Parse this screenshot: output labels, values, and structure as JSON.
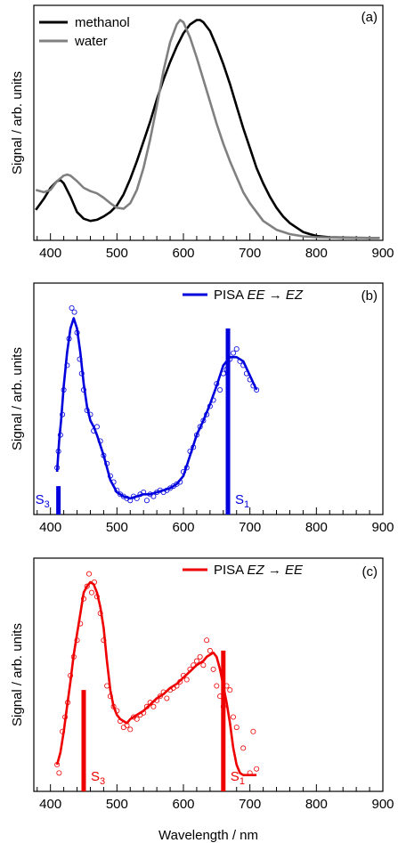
{
  "chart_data": [
    {
      "type": "line",
      "panel_label": "(a)",
      "ylabel": "Signal / arb. units",
      "xlim": [
        375,
        900
      ],
      "ylim": [
        0,
        1.0
      ],
      "xticks": [
        "400",
        "500",
        "600",
        "700",
        "800",
        "900"
      ],
      "legend_position": "top-left",
      "series": [
        {
          "name": "methanol",
          "color": "#000000",
          "x": [
            378,
            390,
            400,
            410,
            415,
            420,
            430,
            440,
            450,
            460,
            470,
            480,
            490,
            500,
            510,
            520,
            530,
            540,
            550,
            560,
            570,
            580,
            590,
            600,
            610,
            620,
            625,
            630,
            640,
            650,
            660,
            670,
            680,
            690,
            700,
            710,
            720,
            730,
            740,
            750,
            760,
            770,
            780,
            790,
            800,
            820,
            850,
            880,
            895
          ],
          "y": [
            0.13,
            0.18,
            0.23,
            0.26,
            0.265,
            0.25,
            0.19,
            0.12,
            0.09,
            0.08,
            0.085,
            0.1,
            0.12,
            0.15,
            0.2,
            0.27,
            0.35,
            0.44,
            0.53,
            0.63,
            0.72,
            0.8,
            0.87,
            0.93,
            0.97,
            0.99,
            0.99,
            0.98,
            0.94,
            0.87,
            0.79,
            0.7,
            0.6,
            0.5,
            0.41,
            0.32,
            0.25,
            0.19,
            0.14,
            0.1,
            0.07,
            0.05,
            0.03,
            0.02,
            0.012,
            0.006,
            0.004,
            0.003,
            0.003
          ]
        },
        {
          "name": "water",
          "color": "#808080",
          "x": [
            378,
            390,
            400,
            410,
            420,
            425,
            430,
            440,
            450,
            460,
            470,
            480,
            490,
            500,
            510,
            520,
            530,
            540,
            550,
            560,
            570,
            580,
            590,
            595,
            600,
            610,
            620,
            630,
            640,
            650,
            660,
            670,
            680,
            690,
            700,
            720,
            740,
            760,
            780,
            800,
            830,
            860,
            895
          ],
          "y": [
            0.22,
            0.21,
            0.22,
            0.26,
            0.285,
            0.29,
            0.285,
            0.26,
            0.23,
            0.215,
            0.205,
            0.185,
            0.16,
            0.14,
            0.135,
            0.16,
            0.22,
            0.32,
            0.45,
            0.6,
            0.76,
            0.89,
            0.97,
            0.99,
            0.98,
            0.91,
            0.82,
            0.72,
            0.62,
            0.52,
            0.43,
            0.35,
            0.28,
            0.21,
            0.16,
            0.08,
            0.04,
            0.02,
            0.01,
            0.006,
            0.004,
            0.003,
            0.003
          ]
        }
      ]
    },
    {
      "type": "line",
      "panel_label": "(b)",
      "ylabel": "Signal / arb. units",
      "xlim": [
        375,
        900
      ],
      "ylim": [
        0,
        1.0
      ],
      "xticks": [
        "400",
        "500",
        "600",
        "700",
        "800",
        "900"
      ],
      "legend_position": "top-right",
      "color": "#0000dd",
      "series": [
        {
          "name": "PISA",
          "name_italic_1": "EE",
          "name_arrow": "→",
          "name_italic_2": "EZ",
          "x": [
            410,
            413,
            416,
            420,
            425,
            430,
            435,
            440,
            445,
            450,
            455,
            460,
            465,
            470,
            480,
            490,
            500,
            510,
            520,
            530,
            540,
            550,
            560,
            570,
            580,
            590,
            600,
            610,
            620,
            630,
            640,
            650,
            660,
            670,
            680,
            690,
            700,
            710
          ],
          "y": [
            0.2,
            0.35,
            0.45,
            0.62,
            0.78,
            0.9,
            0.95,
            0.9,
            0.78,
            0.63,
            0.52,
            0.45,
            0.42,
            0.38,
            0.28,
            0.16,
            0.1,
            0.08,
            0.07,
            0.08,
            0.09,
            0.09,
            0.1,
            0.11,
            0.12,
            0.14,
            0.18,
            0.28,
            0.38,
            0.45,
            0.53,
            0.62,
            0.72,
            0.76,
            0.76,
            0.74,
            0.67,
            0.6
          ]
        }
      ],
      "scatter": {
        "x": [
          410,
          412,
          415,
          418,
          420,
          425,
          428,
          432,
          436,
          440,
          444,
          447,
          450,
          455,
          460,
          465,
          470,
          475,
          480,
          485,
          490,
          495,
          500,
          505,
          510,
          515,
          520,
          525,
          530,
          535,
          540,
          545,
          550,
          555,
          560,
          565,
          570,
          575,
          580,
          585,
          590,
          595,
          600,
          605,
          610,
          615,
          620,
          625,
          630,
          635,
          640,
          645,
          650,
          655,
          660,
          665,
          670,
          675,
          680,
          685,
          690,
          695,
          700,
          705,
          710
        ],
        "y": [
          0.22,
          0.3,
          0.38,
          0.48,
          0.6,
          0.72,
          0.85,
          1.0,
          0.98,
          0.88,
          0.75,
          0.68,
          0.6,
          0.5,
          0.48,
          0.4,
          0.42,
          0.35,
          0.28,
          0.24,
          0.18,
          0.15,
          0.11,
          0.09,
          0.08,
          0.07,
          0.06,
          0.08,
          0.07,
          0.09,
          0.1,
          0.06,
          0.09,
          0.08,
          0.1,
          0.11,
          0.1,
          0.11,
          0.12,
          0.13,
          0.14,
          0.15,
          0.2,
          0.22,
          0.3,
          0.32,
          0.38,
          0.42,
          0.45,
          0.48,
          0.52,
          0.55,
          0.63,
          0.6,
          0.68,
          0.7,
          0.75,
          0.78,
          0.8,
          0.74,
          0.72,
          0.68,
          0.65,
          0.62,
          0.6
        ]
      },
      "sticks": [
        {
          "label": "S3",
          "sub": "3",
          "x": 412,
          "height": 0.13
        },
        {
          "label": "S1",
          "sub": "1",
          "x": 667,
          "height": 0.9
        }
      ]
    },
    {
      "type": "line",
      "panel_label": "(c)",
      "ylabel": "Signal / arb. units",
      "xlabel": "Wavelength / nm",
      "xlim": [
        375,
        900
      ],
      "ylim": [
        0,
        1.0
      ],
      "xticks": [
        "400",
        "500",
        "600",
        "700",
        "800",
        "900"
      ],
      "legend_position": "top-right",
      "color": "#ee0000",
      "series": [
        {
          "name": "PISA",
          "name_italic_1": "EZ",
          "name_arrow": "→",
          "name_italic_2": "EE",
          "x": [
            410,
            415,
            420,
            425,
            430,
            435,
            440,
            445,
            450,
            455,
            460,
            465,
            470,
            475,
            480,
            485,
            490,
            495,
            500,
            505,
            510,
            515,
            520,
            530,
            540,
            550,
            560,
            570,
            580,
            590,
            600,
            610,
            620,
            630,
            635,
            640,
            645,
            650,
            655,
            660,
            665,
            670,
            675,
            680,
            685,
            690,
            700,
            705,
            710
          ],
          "y": [
            0.12,
            0.18,
            0.28,
            0.4,
            0.52,
            0.65,
            0.75,
            0.85,
            0.95,
            0.98,
            1.0,
            0.99,
            0.95,
            0.88,
            0.78,
            0.62,
            0.48,
            0.4,
            0.36,
            0.34,
            0.33,
            0.32,
            0.34,
            0.36,
            0.38,
            0.41,
            0.44,
            0.46,
            0.49,
            0.51,
            0.54,
            0.57,
            0.6,
            0.62,
            0.64,
            0.65,
            0.66,
            0.64,
            0.58,
            0.5,
            0.42,
            0.32,
            0.2,
            0.12,
            0.08,
            0.07,
            0.07,
            0.07,
            0.07
          ]
        }
      ],
      "scatter": {
        "x": [
          410,
          413,
          418,
          422,
          426,
          430,
          435,
          440,
          445,
          450,
          455,
          458,
          462,
          466,
          470,
          475,
          480,
          485,
          490,
          495,
          500,
          505,
          510,
          515,
          520,
          525,
          530,
          535,
          540,
          545,
          550,
          555,
          560,
          565,
          570,
          575,
          580,
          585,
          590,
          595,
          600,
          605,
          610,
          615,
          620,
          625,
          630,
          635,
          640,
          645,
          650,
          655,
          660,
          665,
          670,
          675,
          680,
          690,
          700,
          705,
          710
        ],
        "y": [
          0.12,
          0.08,
          0.28,
          0.35,
          0.42,
          0.55,
          0.64,
          0.72,
          0.8,
          0.92,
          0.98,
          1.04,
          0.95,
          1.0,
          0.93,
          0.85,
          0.72,
          0.5,
          0.45,
          0.4,
          0.38,
          0.33,
          0.3,
          0.31,
          0.29,
          0.35,
          0.34,
          0.36,
          0.37,
          0.4,
          0.42,
          0.4,
          0.43,
          0.45,
          0.47,
          0.44,
          0.48,
          0.49,
          0.5,
          0.52,
          0.55,
          0.53,
          0.58,
          0.6,
          0.62,
          0.64,
          0.6,
          0.72,
          0.67,
          0.58,
          0.5,
          0.45,
          0.4,
          0.5,
          0.48,
          0.35,
          0.3,
          0.2,
          0.08,
          0.28,
          0.1
        ]
      },
      "sticks": [
        {
          "label": "S3",
          "sub": "3",
          "x": 450,
          "height": 0.48
        },
        {
          "label": "S1",
          "sub": "1",
          "x": 660,
          "height": 0.67
        }
      ]
    }
  ]
}
